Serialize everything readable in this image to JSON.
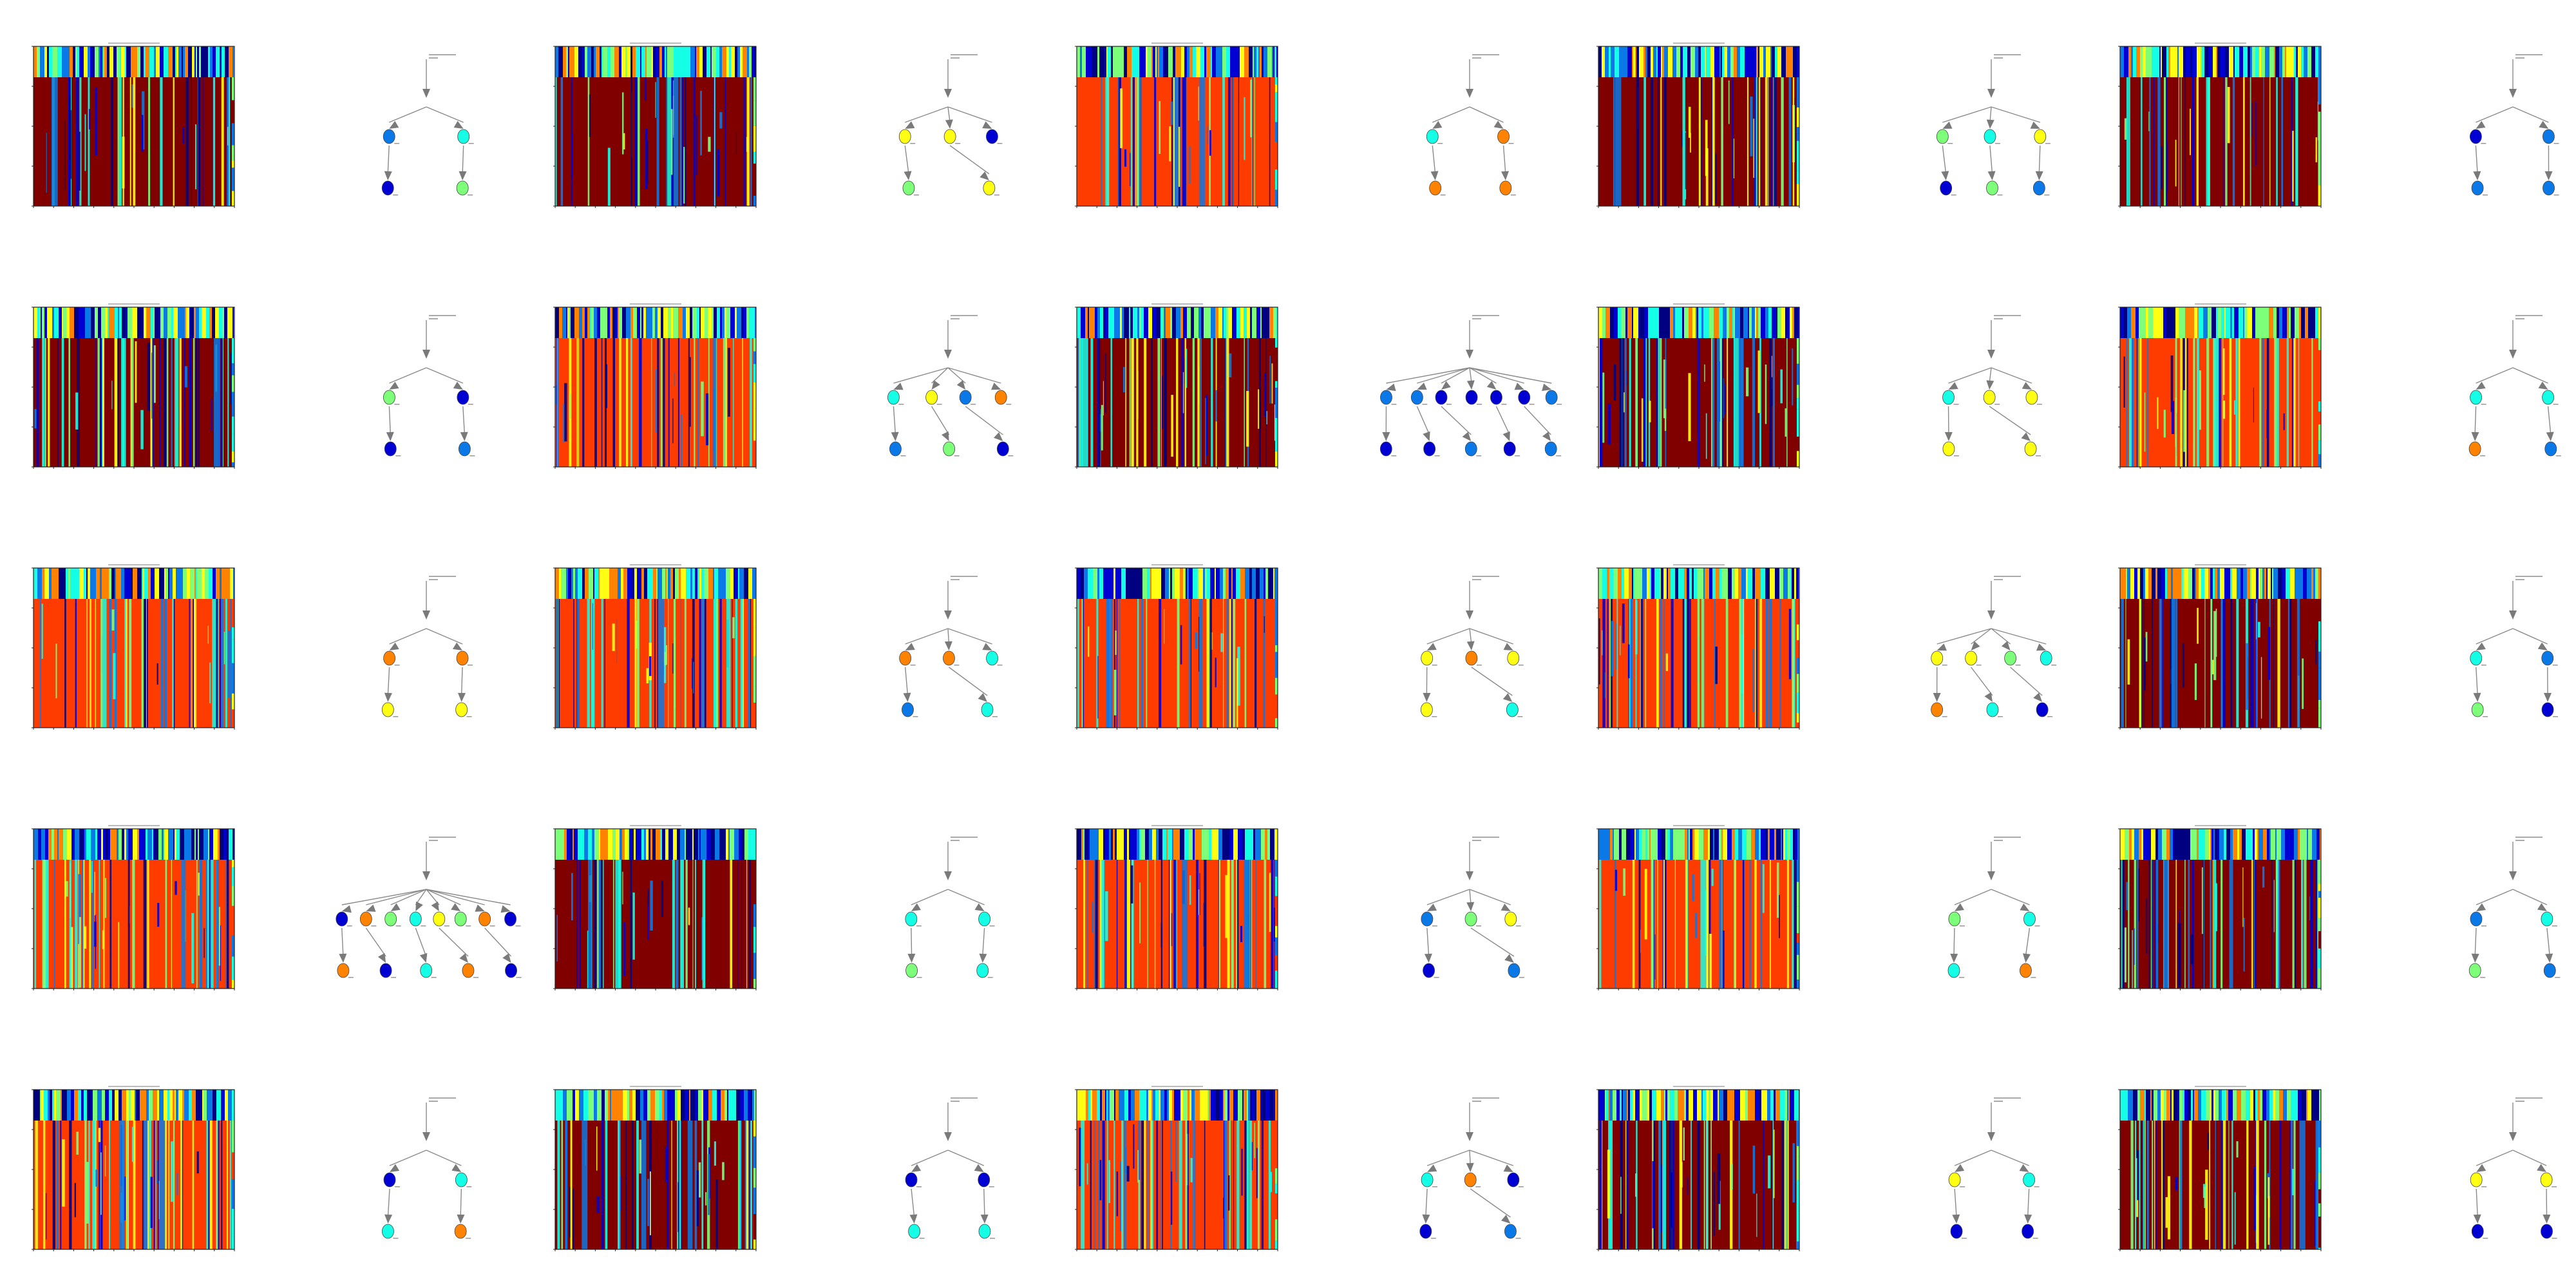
{
  "chart_data": {
    "type": "grid-of-heatmaps-and-trees",
    "rows": 5,
    "cols": 5,
    "colors": {
      "dark_red": "#800000",
      "red_orange": "#ff3c00",
      "yellow": "#ffff14",
      "light_green": "#7dff7a",
      "cyan": "#14ffe6",
      "sky_blue": "#0a78e6",
      "blue": "#0000d2",
      "dark_blue": "#000080",
      "orange": "#ff8200",
      "edge": "#8a8a8a"
    },
    "panels": [
      {
        "base": "dark_red",
        "nodes": [
          {
            "c": "sky_blue"
          },
          {
            "c": "cyan"
          },
          {
            "c": "blue"
          },
          {
            "c": "light_green"
          }
        ]
      },
      {
        "base": "dark_red",
        "nodes": [
          {
            "c": "yellow"
          },
          {
            "c": "yellow"
          },
          {
            "c": "blue"
          },
          {
            "c": "light_green"
          },
          {
            "c": "yellow"
          }
        ]
      },
      {
        "base": "red_orange",
        "nodes": [
          {
            "c": "cyan"
          },
          {
            "c": "orange"
          },
          {
            "c": "orange"
          },
          {
            "c": "orange"
          }
        ]
      },
      {
        "base": "dark_red",
        "nodes": [
          {
            "c": "light_green"
          },
          {
            "c": "cyan"
          },
          {
            "c": "yellow"
          },
          {
            "c": "blue"
          },
          {
            "c": "light_green"
          },
          {
            "c": "sky_blue"
          }
        ]
      },
      {
        "base": "dark_red",
        "nodes": [
          {
            "c": "blue"
          },
          {
            "c": "sky_blue"
          },
          {
            "c": "sky_blue"
          },
          {
            "c": "sky_blue"
          }
        ]
      },
      {
        "base": "dark_red",
        "nodes": [
          {
            "c": "light_green"
          },
          {
            "c": "blue"
          },
          {
            "c": "blue"
          },
          {
            "c": "sky_blue"
          }
        ]
      },
      {
        "base": "red_orange",
        "nodes": [
          {
            "c": "cyan"
          },
          {
            "c": "yellow"
          },
          {
            "c": "sky_blue"
          },
          {
            "c": "orange"
          },
          {
            "c": "sky_blue"
          },
          {
            "c": "light_green"
          },
          {
            "c": "blue"
          }
        ]
      },
      {
        "base": "dark_red",
        "nodes": [
          {
            "c": "sky_blue"
          },
          {
            "c": "sky_blue"
          },
          {
            "c": "blue"
          },
          {
            "c": "blue"
          },
          {
            "c": "blue"
          },
          {
            "c": "blue"
          },
          {
            "c": "sky_blue"
          },
          {
            "c": "blue"
          },
          {
            "c": "blue"
          },
          {
            "c": "sky_blue"
          },
          {
            "c": "blue"
          },
          {
            "c": "sky_blue"
          }
        ]
      },
      {
        "base": "dark_red",
        "nodes": [
          {
            "c": "cyan"
          },
          {
            "c": "yellow"
          },
          {
            "c": "yellow"
          },
          {
            "c": "yellow"
          },
          {
            "c": "yellow"
          }
        ]
      },
      {
        "base": "red_orange",
        "nodes": [
          {
            "c": "cyan"
          },
          {
            "c": "cyan"
          },
          {
            "c": "orange"
          },
          {
            "c": "sky_blue"
          }
        ]
      },
      {
        "base": "red_orange",
        "nodes": [
          {
            "c": "orange"
          },
          {
            "c": "orange"
          },
          {
            "c": "yellow"
          },
          {
            "c": "yellow"
          }
        ]
      },
      {
        "base": "red_orange",
        "nodes": [
          {
            "c": "orange"
          },
          {
            "c": "orange"
          },
          {
            "c": "cyan"
          },
          {
            "c": "sky_blue"
          },
          {
            "c": "cyan"
          }
        ]
      },
      {
        "base": "red_orange",
        "nodes": [
          {
            "c": "yellow"
          },
          {
            "c": "orange"
          },
          {
            "c": "yellow"
          },
          {
            "c": "yellow"
          },
          {
            "c": "cyan"
          }
        ]
      },
      {
        "base": "red_orange",
        "nodes": [
          {
            "c": "yellow"
          },
          {
            "c": "yellow"
          },
          {
            "c": "light_green"
          },
          {
            "c": "cyan"
          },
          {
            "c": "orange"
          },
          {
            "c": "cyan"
          },
          {
            "c": "blue"
          }
        ]
      },
      {
        "base": "dark_red",
        "nodes": [
          {
            "c": "cyan"
          },
          {
            "c": "sky_blue"
          },
          {
            "c": "light_green"
          },
          {
            "c": "blue"
          }
        ]
      },
      {
        "base": "red_orange",
        "nodes": [
          {
            "c": "blue"
          },
          {
            "c": "orange"
          },
          {
            "c": "light_green"
          },
          {
            "c": "cyan"
          },
          {
            "c": "yellow"
          },
          {
            "c": "light_green"
          },
          {
            "c": "orange"
          },
          {
            "c": "blue"
          },
          {
            "c": "orange"
          },
          {
            "c": "blue"
          },
          {
            "c": "cyan"
          },
          {
            "c": "orange"
          },
          {
            "c": "blue"
          }
        ]
      },
      {
        "base": "dark_red",
        "nodes": [
          {
            "c": "cyan"
          },
          {
            "c": "cyan"
          },
          {
            "c": "light_green"
          },
          {
            "c": "cyan"
          }
        ]
      },
      {
        "base": "red_orange",
        "nodes": [
          {
            "c": "sky_blue"
          },
          {
            "c": "light_green"
          },
          {
            "c": "yellow"
          },
          {
            "c": "blue"
          },
          {
            "c": "sky_blue"
          }
        ]
      },
      {
        "base": "red_orange",
        "nodes": [
          {
            "c": "light_green"
          },
          {
            "c": "cyan"
          },
          {
            "c": "cyan"
          },
          {
            "c": "orange"
          }
        ]
      },
      {
        "base": "dark_red",
        "nodes": [
          {
            "c": "sky_blue"
          },
          {
            "c": "cyan"
          },
          {
            "c": "light_green"
          },
          {
            "c": "sky_blue"
          }
        ]
      },
      {
        "base": "red_orange",
        "nodes": [
          {
            "c": "blue"
          },
          {
            "c": "cyan"
          },
          {
            "c": "cyan"
          },
          {
            "c": "orange"
          }
        ]
      },
      {
        "base": "dark_red",
        "nodes": [
          {
            "c": "blue"
          },
          {
            "c": "blue"
          },
          {
            "c": "cyan"
          },
          {
            "c": "cyan"
          }
        ]
      },
      {
        "base": "red_orange",
        "nodes": [
          {
            "c": "cyan"
          },
          {
            "c": "orange"
          },
          {
            "c": "blue"
          },
          {
            "c": "blue"
          },
          {
            "c": "sky_blue"
          }
        ]
      },
      {
        "base": "dark_red",
        "nodes": [
          {
            "c": "yellow"
          },
          {
            "c": "cyan"
          },
          {
            "c": "blue"
          },
          {
            "c": "blue"
          }
        ]
      },
      {
        "base": "dark_red",
        "nodes": [
          {
            "c": "yellow"
          },
          {
            "c": "yellow"
          },
          {
            "c": "blue"
          },
          {
            "c": "blue"
          }
        ]
      }
    ]
  }
}
